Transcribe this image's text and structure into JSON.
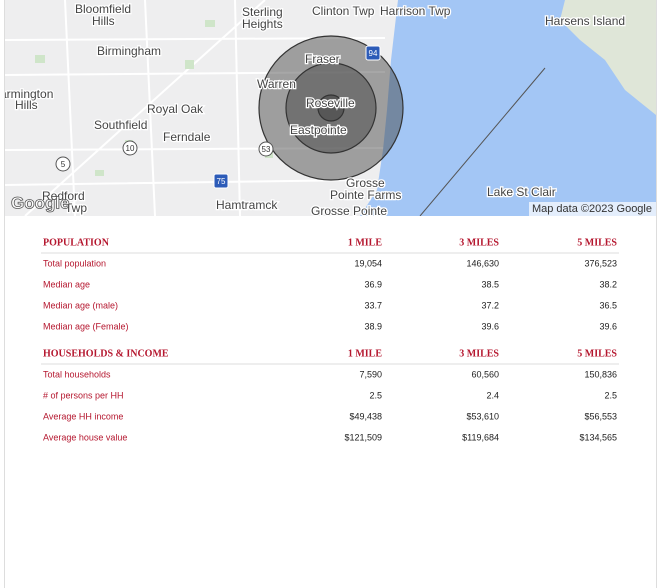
{
  "map": {
    "labels": [
      "Bloomfield",
      "Hills",
      "Sterling",
      "Heights",
      "Clinton Twp",
      "Harrison Twp",
      "Harsens Island",
      "Birmingham",
      "Fraser",
      "Warren",
      "armington",
      "Hills",
      "Royal Oak",
      "Roseville",
      "Southfield",
      "Ferndale",
      "Eastpointe",
      "Grosse",
      "Pointe Farms",
      "Lake St Clair",
      "Redford",
      "Twp",
      "Hamtramck",
      "Grosse Pointe"
    ],
    "shields": [
      "94",
      "5",
      "10",
      "53",
      "75"
    ],
    "logo": "Google",
    "attribution": "Map data ©2023 Google"
  },
  "tables": [
    {
      "headers": [
        "POPULATION",
        "1 MILE",
        "3 MILES",
        "5 MILES"
      ],
      "rows": [
        [
          "Total population",
          "19,054",
          "146,630",
          "376,523"
        ],
        [
          "Median age",
          "36.9",
          "38.5",
          "38.2"
        ],
        [
          "Median age (male)",
          "33.7",
          "37.2",
          "36.5"
        ],
        [
          "Median age (Female)",
          "38.9",
          "39.6",
          "39.6"
        ]
      ]
    },
    {
      "headers": [
        "HOUSEHOLDS & INCOME",
        "1 MILE",
        "3 MILES",
        "5 MILES"
      ],
      "rows": [
        [
          "Total households",
          "7,590",
          "60,560",
          "150,836"
        ],
        [
          "# of persons per HH",
          "2.5",
          "2.4",
          "2.5"
        ],
        [
          "Average HH income",
          "$49,438",
          "$53,610",
          "$56,553"
        ],
        [
          "Average house value",
          "$121,509",
          "$119,684",
          "$134,565"
        ]
      ]
    }
  ]
}
